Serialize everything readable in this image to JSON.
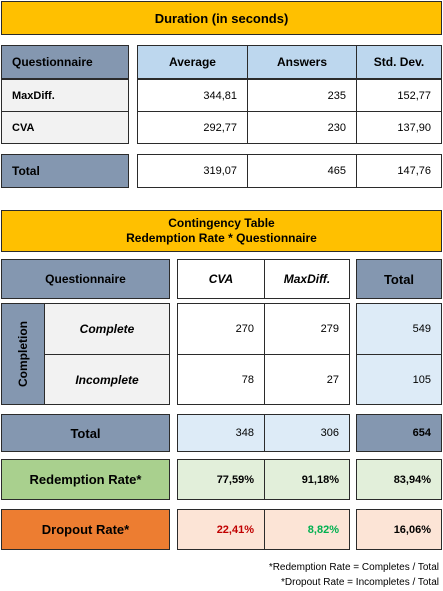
{
  "duration": {
    "title": "Duration (in seconds)",
    "headers": {
      "questionnaire": "Questionnaire",
      "average": "Average",
      "answers": "Answers",
      "stddev": "Std. Dev."
    },
    "rows": [
      {
        "label": "MaxDiff.",
        "average": "344,81",
        "answers": "235",
        "stddev": "152,77"
      },
      {
        "label": "CVA",
        "average": "292,77",
        "answers": "230",
        "stddev": "137,90"
      }
    ],
    "total": {
      "label": "Total",
      "average": "319,07",
      "answers": "465",
      "stddev": "147,76"
    }
  },
  "contingency": {
    "title_line1": "Contingency Table",
    "title_line2": "Redemption Rate * Questionnaire",
    "headers": {
      "questionnaire": "Questionnaire",
      "cva": "CVA",
      "maxdiff": "MaxDiff.",
      "total": "Total"
    },
    "group_label": "Completion",
    "rows": [
      {
        "label": "Complete",
        "cva": "270",
        "maxdiff": "279",
        "total": "549"
      },
      {
        "label": "Incomplete",
        "cva": "78",
        "maxdiff": "27",
        "total": "105"
      }
    ],
    "total": {
      "label": "Total",
      "cva": "348",
      "maxdiff": "306",
      "total": "654"
    },
    "redemption": {
      "label": "Redemption Rate*",
      "cva": "77,59%",
      "maxdiff": "91,18%",
      "total": "83,94%"
    },
    "dropout": {
      "label": "Dropout Rate*",
      "cva": "22,41%",
      "maxdiff": "8,82%",
      "total": "16,06%"
    }
  },
  "colors": {
    "dropout_cva": "#c00000",
    "dropout_maxdiff": "#00b050"
  },
  "notes": {
    "redemption": "*Redemption Rate = Completes / Total",
    "dropout": "*Dropout Rate = Incompletes / Total"
  }
}
